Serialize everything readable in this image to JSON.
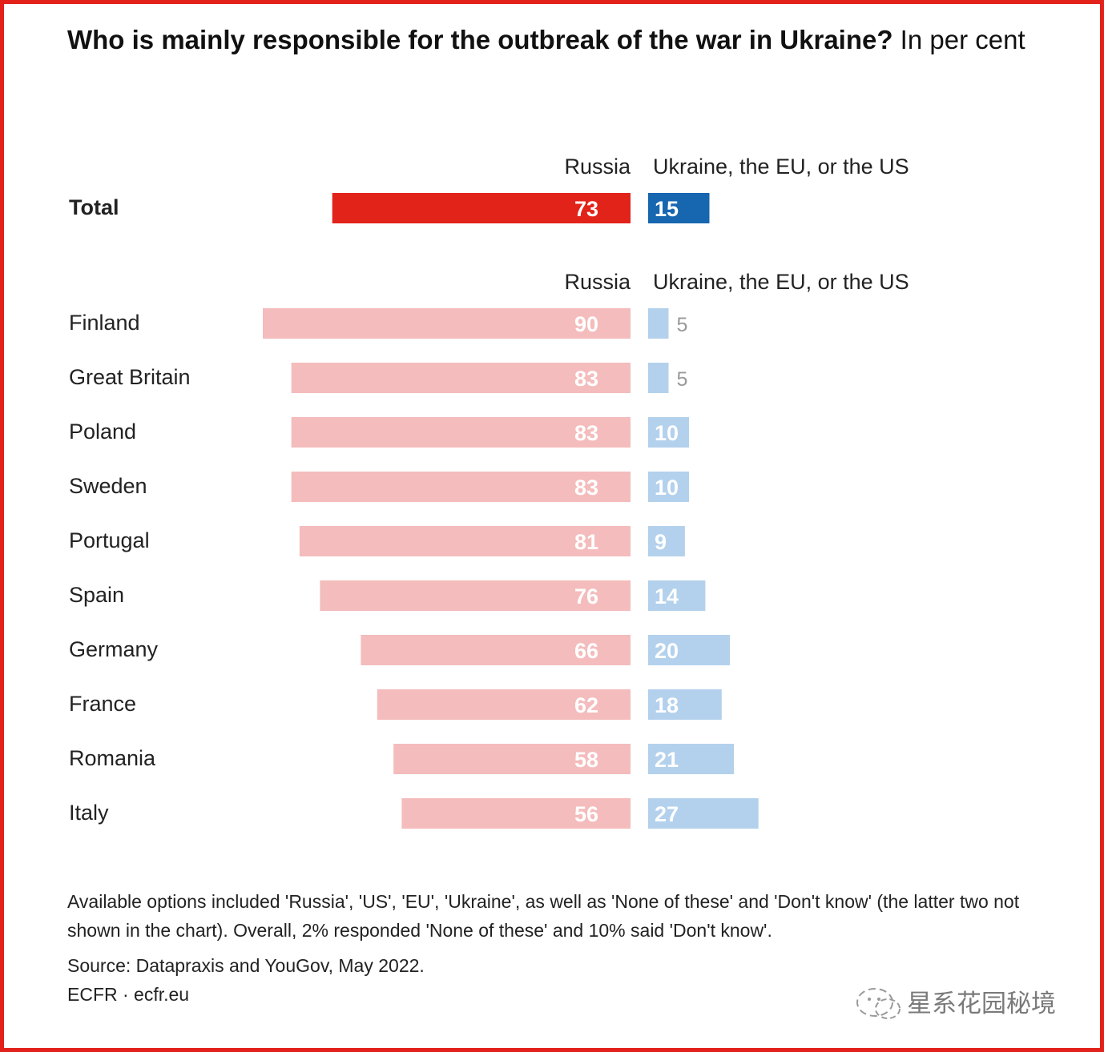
{
  "title": {
    "bold": "Who is mainly responsible for the outbreak of the war in Ukraine?",
    "rest": " In per cent"
  },
  "headers": {
    "russia": "Russia",
    "other": "Ukraine, the EU, or the US"
  },
  "colors": {
    "border": "#e3211b",
    "total_russia": "#e2231a",
    "total_other": "#1766b0",
    "russia": "#f4bcbc",
    "other": "#b3d1ec",
    "label_light": "#ffffff",
    "label_small": "#999999"
  },
  "chart_data": {
    "type": "bar",
    "orientation": "horizontal-diverging",
    "unit": "per cent",
    "series": [
      {
        "name": "Russia"
      },
      {
        "name": "Ukraine, the EU, or the US"
      }
    ],
    "total": {
      "label": "Total",
      "russia": 73,
      "other": 15
    },
    "rows": [
      {
        "label": "Finland",
        "russia": 90,
        "other": 5
      },
      {
        "label": "Great Britain",
        "russia": 83,
        "other": 5
      },
      {
        "label": "Poland",
        "russia": 83,
        "other": 10
      },
      {
        "label": "Sweden",
        "russia": 83,
        "other": 10
      },
      {
        "label": "Portugal",
        "russia": 81,
        "other": 9
      },
      {
        "label": "Spain",
        "russia": 76,
        "other": 14
      },
      {
        "label": "Germany",
        "russia": 66,
        "other": 20
      },
      {
        "label": "France",
        "russia": 62,
        "other": 18
      },
      {
        "label": "Romania",
        "russia": 58,
        "other": 21
      },
      {
        "label": "Italy",
        "russia": 56,
        "other": 27
      }
    ]
  },
  "note": "Available options included 'Russia', 'US', 'EU', 'Ukraine', as well as 'None of these' and 'Don't know' (the latter two not shown in the chart). Overall, 2% responded 'None of these' and 10% said 'Don't know'.",
  "source": "Source: Datapraxis and YouGov, May 2022.",
  "credit": "ECFR · ecfr.eu",
  "watermark": {
    "icon": "wechat-icon",
    "text": "星系花园秘境"
  }
}
